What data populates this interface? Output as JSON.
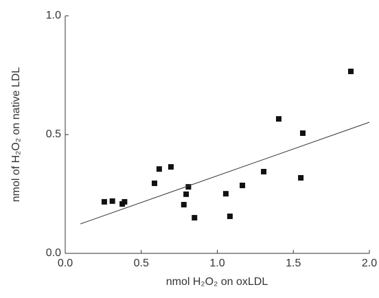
{
  "chart_data": {
    "type": "scatter",
    "x_label": "nmol H₂O₂ on oxLDL",
    "y_label": "nmol of H₂O₂ on native LDL",
    "xlim": [
      0,
      2.0
    ],
    "ylim": [
      0,
      1.0
    ],
    "xticks": [
      {
        "value": 0,
        "label": "0.0"
      },
      0.5,
      {
        "value": 1.0,
        "label": "1.0"
      },
      1.5,
      {
        "value": 2.0,
        "label": "2.0"
      }
    ],
    "yticks": [
      {
        "value": 0,
        "label": "0.0"
      },
      0.5,
      {
        "value": 1.0,
        "label": "1.0"
      }
    ],
    "color": "#111111",
    "x": [
      0.257,
      0.31,
      0.375,
      0.39,
      0.587,
      0.618,
      0.695,
      0.78,
      0.795,
      0.81,
      0.85,
      1.056,
      1.083,
      1.165,
      1.305,
      1.404,
      1.549,
      1.562,
      1.878
    ],
    "values": [
      0.217,
      0.22,
      0.208,
      0.217,
      0.295,
      0.355,
      0.364,
      0.205,
      0.249,
      0.28,
      0.15,
      0.251,
      0.156,
      0.286,
      0.344,
      0.566,
      0.318,
      0.506,
      0.766
    ],
    "fit": {
      "x": [
        0.1,
        2.0
      ],
      "y": [
        0.124,
        0.552
      ]
    }
  }
}
